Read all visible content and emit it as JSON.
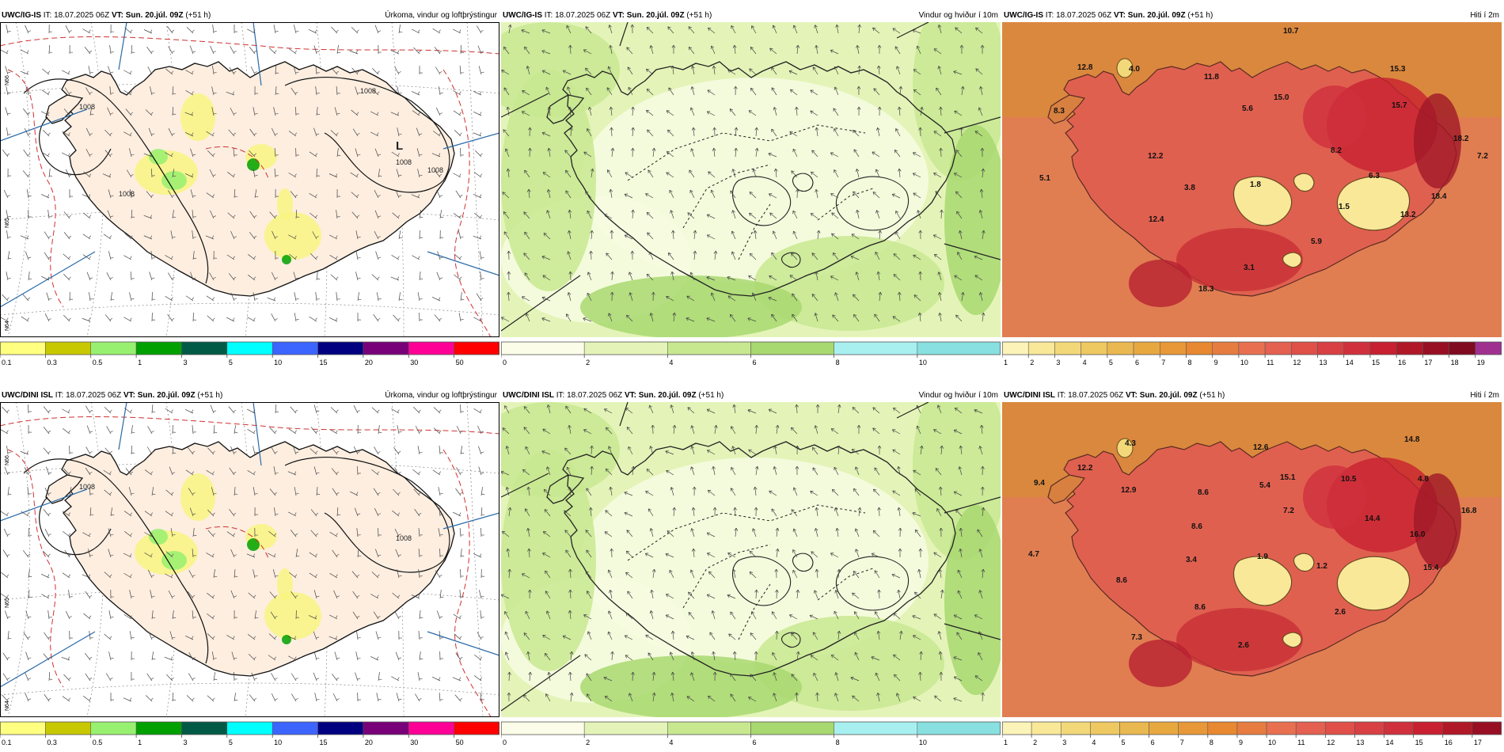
{
  "panels": [
    {
      "id": "ig-precip",
      "model": "UWC/IG-IS",
      "it_label": "IT:",
      "it": "18.07.2025 06Z",
      "vt_label": "VT:",
      "vt": "Sun. 20.júl. 09Z",
      "lead": "(+51 h)",
      "title": "Úrkoma, vindur og loftþrýstingur",
      "pressure_labels": [
        "1008",
        "L",
        "1008",
        "1008",
        "1008",
        "1008"
      ],
      "legend": [
        "0.1",
        "0.3",
        "0.5",
        "1",
        "3",
        "5",
        "10",
        "15",
        "20",
        "30",
        "50"
      ],
      "legend_colors": [
        "#ffff80",
        "#c8c800",
        "#98f070",
        "#00a000",
        "#005a46",
        "#00ffff",
        "#3c64ff",
        "#000080",
        "#780078",
        "#ff0096",
        "#ff0000"
      ]
    },
    {
      "id": "ig-wind",
      "model": "UWC/IG-IS",
      "it_label": "IT:",
      "it": "18.07.2025 06Z",
      "vt_label": "VT:",
      "vt": "Sun. 20.júl. 09Z",
      "lead": "(+51 h)",
      "title": "Vindur og hviður í 10m",
      "legend": [
        "0",
        "2",
        "4",
        "6",
        "8",
        "10"
      ],
      "legend_colors": [
        "#fbfde8",
        "#e4f4b8",
        "#c8e890",
        "#a8d870",
        "#a8f0f0",
        "#88e0e0"
      ]
    },
    {
      "id": "ig-temp",
      "model": "UWC/IG-IS",
      "it_label": "IT:",
      "it": "18.07.2025 06Z",
      "vt_label": "VT:",
      "vt": "Sun. 20.júl. 09Z",
      "lead": "(+51 h)",
      "title": "Hiti í 2m",
      "values": [
        "10.7",
        "12.8",
        "4.0",
        "11.8",
        "15.3",
        "8.3",
        "5.6",
        "15.0",
        "15.7",
        "18.2",
        "12.2",
        "8.2",
        "7.2",
        "5.1",
        "3.8",
        "1.8",
        "6.3",
        "18.4",
        "1.5",
        "12.4",
        "13.2",
        "5.9",
        "3.1",
        "18.3"
      ],
      "legend": [
        "1",
        "2",
        "3",
        "4",
        "5",
        "6",
        "7",
        "8",
        "9",
        "10",
        "11",
        "12",
        "13",
        "14",
        "15",
        "16",
        "17",
        "18",
        "19"
      ],
      "legend_colors": [
        "#fcf3b8",
        "#f8e898",
        "#f2d878",
        "#eec860",
        "#eab850",
        "#e8a840",
        "#e89838",
        "#e88830",
        "#e77c40",
        "#e87050",
        "#e46050",
        "#e05048",
        "#d84044",
        "#d0303c",
        "#c82030",
        "#b01828",
        "#980f24",
        "#800a20",
        "#a03090"
      ]
    },
    {
      "id": "dini-precip",
      "model": "UWC/DINI ISL",
      "it_label": "IT:",
      "it": "18.07.2025 06Z",
      "vt_label": "VT:",
      "vt": "Sun. 20.júl. 09Z",
      "lead": "(+51 h)",
      "title": "Úrkoma, vindur og loftþrýstingur",
      "pressure_labels": [
        "1008",
        "1008"
      ],
      "legend": [
        "0.1",
        "0.3",
        "0.5",
        "1",
        "3",
        "5",
        "10",
        "15",
        "20",
        "30",
        "50"
      ],
      "legend_colors": [
        "#ffff80",
        "#c8c800",
        "#98f070",
        "#00a000",
        "#005a46",
        "#00ffff",
        "#3c64ff",
        "#000080",
        "#780078",
        "#ff0096",
        "#ff0000"
      ]
    },
    {
      "id": "dini-wind",
      "model": "UWC/DINI ISL",
      "it_label": "IT:",
      "it": "18.07.2025 06Z",
      "vt_label": "VT:",
      "vt": "Sun. 20.júl. 09Z",
      "lead": "(+51 h)",
      "title": "Vindur og hviður í 10m",
      "legend": [
        "0",
        "2",
        "4",
        "6",
        "8",
        "10"
      ],
      "legend_colors": [
        "#fbfde8",
        "#e4f4b8",
        "#c8e890",
        "#a8d870",
        "#a8f0f0",
        "#88e0e0"
      ]
    },
    {
      "id": "dini-temp",
      "model": "UWC/DINI ISL",
      "it_label": "IT:",
      "it": "18.07.2025 06Z",
      "vt_label": "VT:",
      "vt": "Sun. 20.júl. 09Z",
      "lead": "(+51 h)",
      "title": "Hiti í 2m",
      "values": [
        "4.3",
        "12.6",
        "14.8",
        "12.2",
        "9.4",
        "5.4",
        "15.1",
        "10.5",
        "4.8",
        "12.9",
        "8.6",
        "7.2",
        "14.4",
        "16.8",
        "8.6",
        "16.0",
        "4.7",
        "3.4",
        "1.9",
        "1.2",
        "15.4",
        "8.6",
        "8.6",
        "2.6",
        "7.3",
        "2.6"
      ],
      "legend": [
        "1",
        "2",
        "3",
        "4",
        "5",
        "6",
        "7",
        "8",
        "9",
        "10",
        "11",
        "12",
        "13",
        "14",
        "15",
        "16",
        "17"
      ],
      "legend_colors": [
        "#fcf3b8",
        "#f8e898",
        "#f2d878",
        "#eec860",
        "#eab850",
        "#e8a840",
        "#e89838",
        "#e88830",
        "#e77c40",
        "#e87050",
        "#e46050",
        "#e05048",
        "#d84044",
        "#d0303c",
        "#c82030",
        "#b01828",
        "#980f24"
      ]
    }
  ],
  "axis_ticks": {
    "n66": "N66",
    "n65": "N65",
    "n64": "N64"
  }
}
